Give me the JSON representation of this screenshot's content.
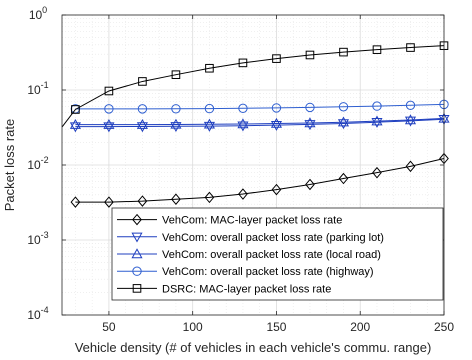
{
  "chart_data": {
    "type": "line",
    "xlabel": "Vehicle density (# of vehicles in each vehicle's commu. range)",
    "ylabel": "Packet loss rate",
    "x_scale": "linear",
    "y_scale": "log",
    "xlim": [
      22,
      250
    ],
    "ylim": [
      0.0001,
      1
    ],
    "x_ticks": [
      50,
      100,
      150,
      200,
      250
    ],
    "y_ticks": [
      {
        "value": 0.0001,
        "base": "10",
        "exp": "-4"
      },
      {
        "value": 0.001,
        "base": "10",
        "exp": "-3"
      },
      {
        "value": 0.01,
        "base": "10",
        "exp": "-2"
      },
      {
        "value": 0.1,
        "base": "10",
        "exp": "-1"
      },
      {
        "value": 1,
        "base": "10",
        "exp": "0"
      }
    ],
    "grid": true,
    "legend_position": "bottom-right",
    "series": [
      {
        "name": "VehCom: MAC-layer packet loss rate",
        "color": "#000000",
        "marker": "diamond",
        "x": [
          30,
          50,
          70,
          90,
          110,
          130,
          150,
          170,
          190,
          210,
          230,
          250
        ],
        "y": [
          0.0032,
          0.0032,
          0.0033,
          0.0035,
          0.0037,
          0.0041,
          0.0047,
          0.0055,
          0.0066,
          0.0079,
          0.0096,
          0.0122
        ]
      },
      {
        "name": "VehCom: overall packet loss rate (parking lot)",
        "color": "#1f3fbf",
        "marker": "triangle-down",
        "x": [
          30,
          50,
          70,
          90,
          110,
          130,
          150,
          170,
          190,
          210,
          230,
          250
        ],
        "y": [
          0.0325,
          0.0325,
          0.0326,
          0.0328,
          0.033,
          0.0334,
          0.034,
          0.0348,
          0.0358,
          0.0372,
          0.0388,
          0.0408
        ]
      },
      {
        "name": "VehCom: overall packet loss rate (local road)",
        "color": "#1f3fbf",
        "marker": "triangle-up",
        "x": [
          30,
          50,
          70,
          90,
          110,
          130,
          150,
          170,
          190,
          210,
          230,
          250
        ],
        "y": [
          0.0345,
          0.0345,
          0.0345,
          0.0347,
          0.0349,
          0.0352,
          0.0357,
          0.0363,
          0.0372,
          0.0384,
          0.0398,
          0.0418
        ]
      },
      {
        "name": "VehCom: overall packet loss rate (highway)",
        "color": "#2f5fd0",
        "marker": "circle",
        "x": [
          30,
          50,
          70,
          90,
          110,
          130,
          150,
          170,
          190,
          210,
          230,
          250
        ],
        "y": [
          0.056,
          0.056,
          0.056,
          0.0562,
          0.0565,
          0.057,
          0.0577,
          0.0586,
          0.0597,
          0.061,
          0.0625,
          0.0643
        ]
      },
      {
        "name": "DSRC: MAC-layer packet loss rate",
        "color": "#000000",
        "marker": "square",
        "line_start": [
          22,
          0.032
        ],
        "x": [
          30,
          50,
          70,
          90,
          110,
          130,
          150,
          170,
          190,
          210,
          230,
          250
        ],
        "y": [
          0.055,
          0.097,
          0.13,
          0.16,
          0.195,
          0.23,
          0.262,
          0.293,
          0.32,
          0.345,
          0.368,
          0.39
        ]
      }
    ]
  }
}
